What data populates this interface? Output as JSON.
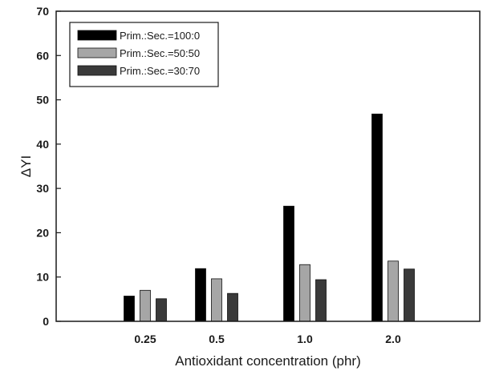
{
  "chart_data": {
    "type": "bar",
    "title": "",
    "xlabel": "Antioxidant concentration (phr)",
    "ylabel": "ΔYI",
    "categories": [
      "0.25",
      "0.5",
      "1.0",
      "2.0"
    ],
    "ylim": [
      0,
      70
    ],
    "yticks": [
      0,
      10,
      20,
      30,
      40,
      50,
      60,
      70
    ],
    "grid": false,
    "legend_position": "top-left",
    "series": [
      {
        "name": "Prim.:Sec.=100:0",
        "color": "#000000",
        "values": [
          5.7,
          11.9,
          26.0,
          46.8
        ]
      },
      {
        "name": "Prim.:Sec.=50:50",
        "color": "#a6a6a6",
        "values": [
          7.0,
          9.6,
          12.8,
          13.6
        ]
      },
      {
        "name": "Prim.:Sec.=30:70",
        "color": "#3a3a3a",
        "values": [
          5.1,
          6.3,
          9.4,
          11.8
        ]
      }
    ]
  }
}
